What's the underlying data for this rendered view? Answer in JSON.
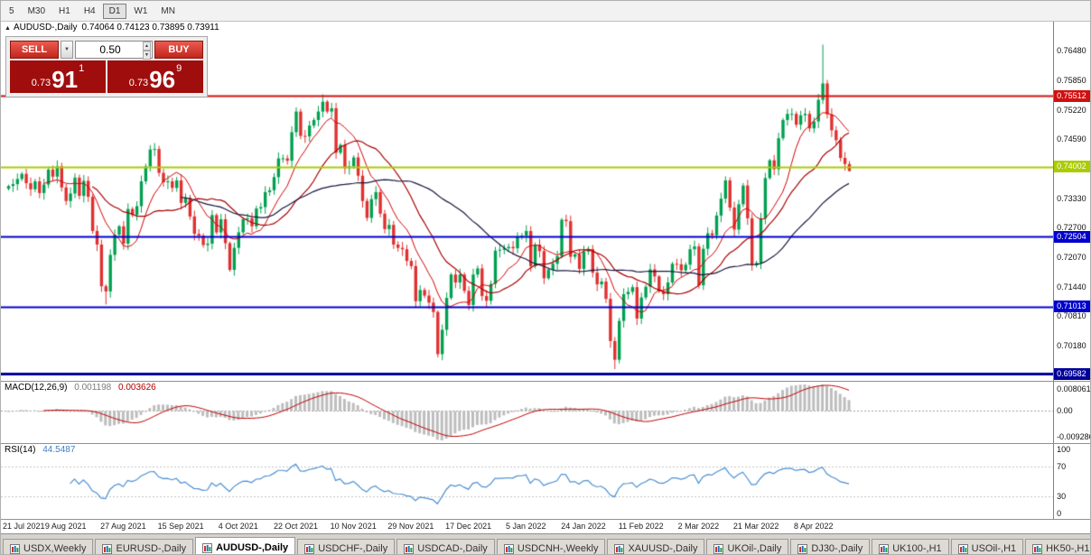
{
  "toolbar": {
    "timeframes": [
      "5",
      "M30",
      "H1",
      "H4",
      "D1",
      "W1",
      "MN"
    ],
    "active": "D1"
  },
  "chart": {
    "collapse_icon": "▲",
    "title": "AUDUSD-,Daily",
    "ohlc": "0.74064 0.74123 0.73895 0.73911"
  },
  "trade_panel": {
    "sell_label": "SELL",
    "buy_label": "BUY",
    "volume": "0.50",
    "dropdown_icon": "▼",
    "spin_up_icon": "▲",
    "spin_down_icon": "▼",
    "sell_price": {
      "prefix": "0.73",
      "big": "91",
      "sup": "1"
    },
    "buy_price": {
      "prefix": "0.73",
      "big": "96",
      "sup": "9"
    },
    "colors": {
      "button_red": "#d0281e",
      "price_bg": "#a00d0d"
    }
  },
  "indicators": {
    "macd_label": "MACD(12,26,9)",
    "macd_value_main": "0.001198",
    "macd_value_signal": "0.003626",
    "rsi_label": "RSI(14)",
    "rsi_value": "44.5487"
  },
  "tabs": {
    "items": [
      "USDX,Weekly",
      "EURUSD-,Daily",
      "AUDUSD-,Daily",
      "USDCHF-,Daily",
      "USDCAD-,Daily",
      "USDCNH-,Weekly",
      "XAUUSD-,Daily",
      "UKOil-,Daily",
      "DJ30-,Daily",
      "UK100-,H1",
      "USOil-,H1",
      "HK50-,H1"
    ],
    "active_index": 2,
    "scroll_left_icon": "◄"
  },
  "chart_data": {
    "type": "candlestick",
    "symbol": "AUDUSD-",
    "period": "Daily",
    "last_ohlc": {
      "open": "0.74064",
      "high": "0.74123",
      "low": "0.73895",
      "close": "0.73911"
    },
    "x_label_every": 13,
    "x_labels": [
      "21 Jul 2021",
      "9 Aug 2021",
      "27 Aug 2021",
      "15 Sep 2021",
      "4 Oct 2021",
      "22 Oct 2021",
      "10 Nov 2021",
      "29 Nov 2021",
      "17 Dec 2021",
      "5 Jan 2022",
      "24 Jan 2022",
      "11 Feb 2022",
      "2 Mar 2022",
      "21 Mar 2022",
      "8 Apr 2022"
    ],
    "price_axis": {
      "max": 0.771,
      "min": 0.6943,
      "ticks": [
        "0.76480",
        "0.75850",
        "0.75220",
        "0.74590",
        "0.73960",
        "0.73330",
        "0.72700",
        "0.72070",
        "0.71440",
        "0.70810",
        "0.70180"
      ]
    },
    "hlines": [
      {
        "price": 0.75512,
        "label": "0.75512",
        "color": "#d01010",
        "width": 2
      },
      {
        "price": 0.74002,
        "label": "0.74002",
        "color": "#aacc00",
        "width": 2
      },
      {
        "price": 0.72504,
        "label": "0.72504",
        "color": "#0000cc",
        "width": 2
      },
      {
        "price": 0.71013,
        "label": "0.71013",
        "color": "#0000cc",
        "width": 2
      },
      {
        "price": 0.69582,
        "label": "0.69582",
        "color": "#000099",
        "width": 3
      }
    ],
    "candles": {
      "up_color": "#00a050",
      "down_color": "#e03030",
      "first_open": 0.7353,
      "wick_base": 0.0004,
      "wick_amp": 0.0013,
      "closes": [
        0.7359,
        0.7363,
        0.7374,
        0.7385,
        0.7365,
        0.7352,
        0.7369,
        0.7344,
        0.7362,
        0.7394,
        0.7379,
        0.7401,
        0.7356,
        0.7327,
        0.7343,
        0.7377,
        0.7338,
        0.737,
        0.7336,
        0.7263,
        0.7234,
        0.7145,
        0.7134,
        0.7212,
        0.7255,
        0.7273,
        0.7236,
        0.731,
        0.7297,
        0.7316,
        0.7369,
        0.7401,
        0.7437,
        0.7438,
        0.7387,
        0.7367,
        0.7369,
        0.7355,
        0.7371,
        0.7323,
        0.7334,
        0.7294,
        0.7257,
        0.7253,
        0.7233,
        0.7236,
        0.7297,
        0.726,
        0.7288,
        0.7237,
        0.718,
        0.7227,
        0.726,
        0.7288,
        0.729,
        0.7273,
        0.7311,
        0.7314,
        0.7346,
        0.735,
        0.7378,
        0.7418,
        0.7418,
        0.7413,
        0.7474,
        0.7518,
        0.7466,
        0.7465,
        0.7488,
        0.75,
        0.7518,
        0.7539,
        0.7518,
        0.7525,
        0.743,
        0.7447,
        0.7397,
        0.7401,
        0.742,
        0.7381,
        0.7327,
        0.7291,
        0.7331,
        0.7346,
        0.73,
        0.7267,
        0.7276,
        0.7234,
        0.7227,
        0.7224,
        0.7199,
        0.7188,
        0.7113,
        0.7137,
        0.7125,
        0.711,
        0.709,
        0.7,
        0.7052,
        0.712,
        0.717,
        0.7153,
        0.717,
        0.7135,
        0.7105,
        0.717,
        0.7183,
        0.7124,
        0.7114,
        0.715,
        0.7221,
        0.7223,
        0.7226,
        0.7229,
        0.7226,
        0.7251,
        0.7253,
        0.7263,
        0.7188,
        0.7234,
        0.722,
        0.7162,
        0.7181,
        0.7193,
        0.7209,
        0.7287,
        0.7284,
        0.7208,
        0.7213,
        0.7182,
        0.7219,
        0.7224,
        0.7174,
        0.7149,
        0.7155,
        0.7118,
        0.7028,
        0.6988,
        0.7071,
        0.7128,
        0.7133,
        0.7143,
        0.7076,
        0.7121,
        0.7144,
        0.7181,
        0.7166,
        0.7134,
        0.7128,
        0.7153,
        0.7193,
        0.7192,
        0.7179,
        0.7191,
        0.7224,
        0.723,
        0.7147,
        0.7225,
        0.7258,
        0.7254,
        0.7296,
        0.7332,
        0.7371,
        0.7313,
        0.7266,
        0.732,
        0.736,
        0.729,
        0.719,
        0.7195,
        0.729,
        0.7376,
        0.7414,
        0.7395,
        0.7461,
        0.75,
        0.7513,
        0.7513,
        0.749,
        0.751,
        0.7513,
        0.7482,
        0.7497,
        0.7543,
        0.7578,
        0.7512,
        0.7478,
        0.7457,
        0.7419,
        0.7406,
        0.73911
      ],
      "overrides": {
        "22": {
          "low": 0.7106
        },
        "71": {
          "high": 0.7555
        },
        "97": {
          "low": 0.6993
        },
        "137": {
          "low": 0.6968
        },
        "184": {
          "high": 0.7661
        },
        "190": {
          "high": 0.74123,
          "low": 0.73895
        }
      }
    },
    "moving_averages": [
      {
        "period": 9,
        "color": "#d40000",
        "width": 1
      },
      {
        "period": 20,
        "color": "#a80000",
        "width": 1.2
      },
      {
        "period": 40,
        "color": "#16163e",
        "width": 1.2
      }
    ],
    "macd": {
      "fast": 12,
      "slow": 26,
      "signal": 9,
      "hist_color": "#bdbdbd",
      "signal_color": "#c00000",
      "axis_labels": {
        "top": "0.008061",
        "zero": "0.00",
        "bottom": "-0.009286"
      }
    },
    "rsi": {
      "period": 14,
      "range": [
        0,
        100
      ],
      "levels": [
        70,
        30
      ],
      "color": "#4a8fd2",
      "axis_labels": [
        "100",
        "70",
        "30",
        "0"
      ]
    }
  }
}
